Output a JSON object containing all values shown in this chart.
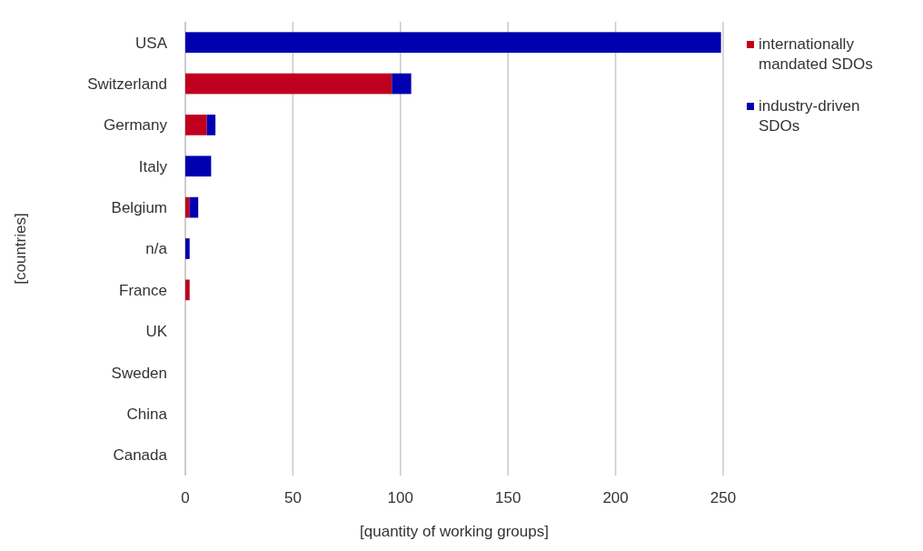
{
  "chart_data": {
    "type": "bar",
    "orientation": "horizontal",
    "stacked": true,
    "xlabel": "[quantity of working groups]",
    "ylabel": "[countries]",
    "categories": [
      "USA",
      "Switzerland",
      "Germany",
      "Italy",
      "Belgium",
      "n/a",
      "France",
      "UK",
      "Sweden",
      "China",
      "Canada"
    ],
    "series": [
      {
        "name": "internationally mandated SDOs",
        "color": "#c0001e",
        "values": [
          0,
          96,
          10,
          0,
          2,
          0,
          2,
          0,
          0,
          0,
          0
        ]
      },
      {
        "name": "industry-driven SDOs",
        "color": "#0000b0",
        "values": [
          249,
          9,
          4,
          12,
          4,
          2,
          0,
          0,
          0,
          0,
          0
        ]
      }
    ],
    "xlim": [
      0,
      250
    ],
    "xticks": [
      0,
      50,
      100,
      150,
      200,
      250
    ],
    "grid": "x",
    "legend": "top right"
  }
}
